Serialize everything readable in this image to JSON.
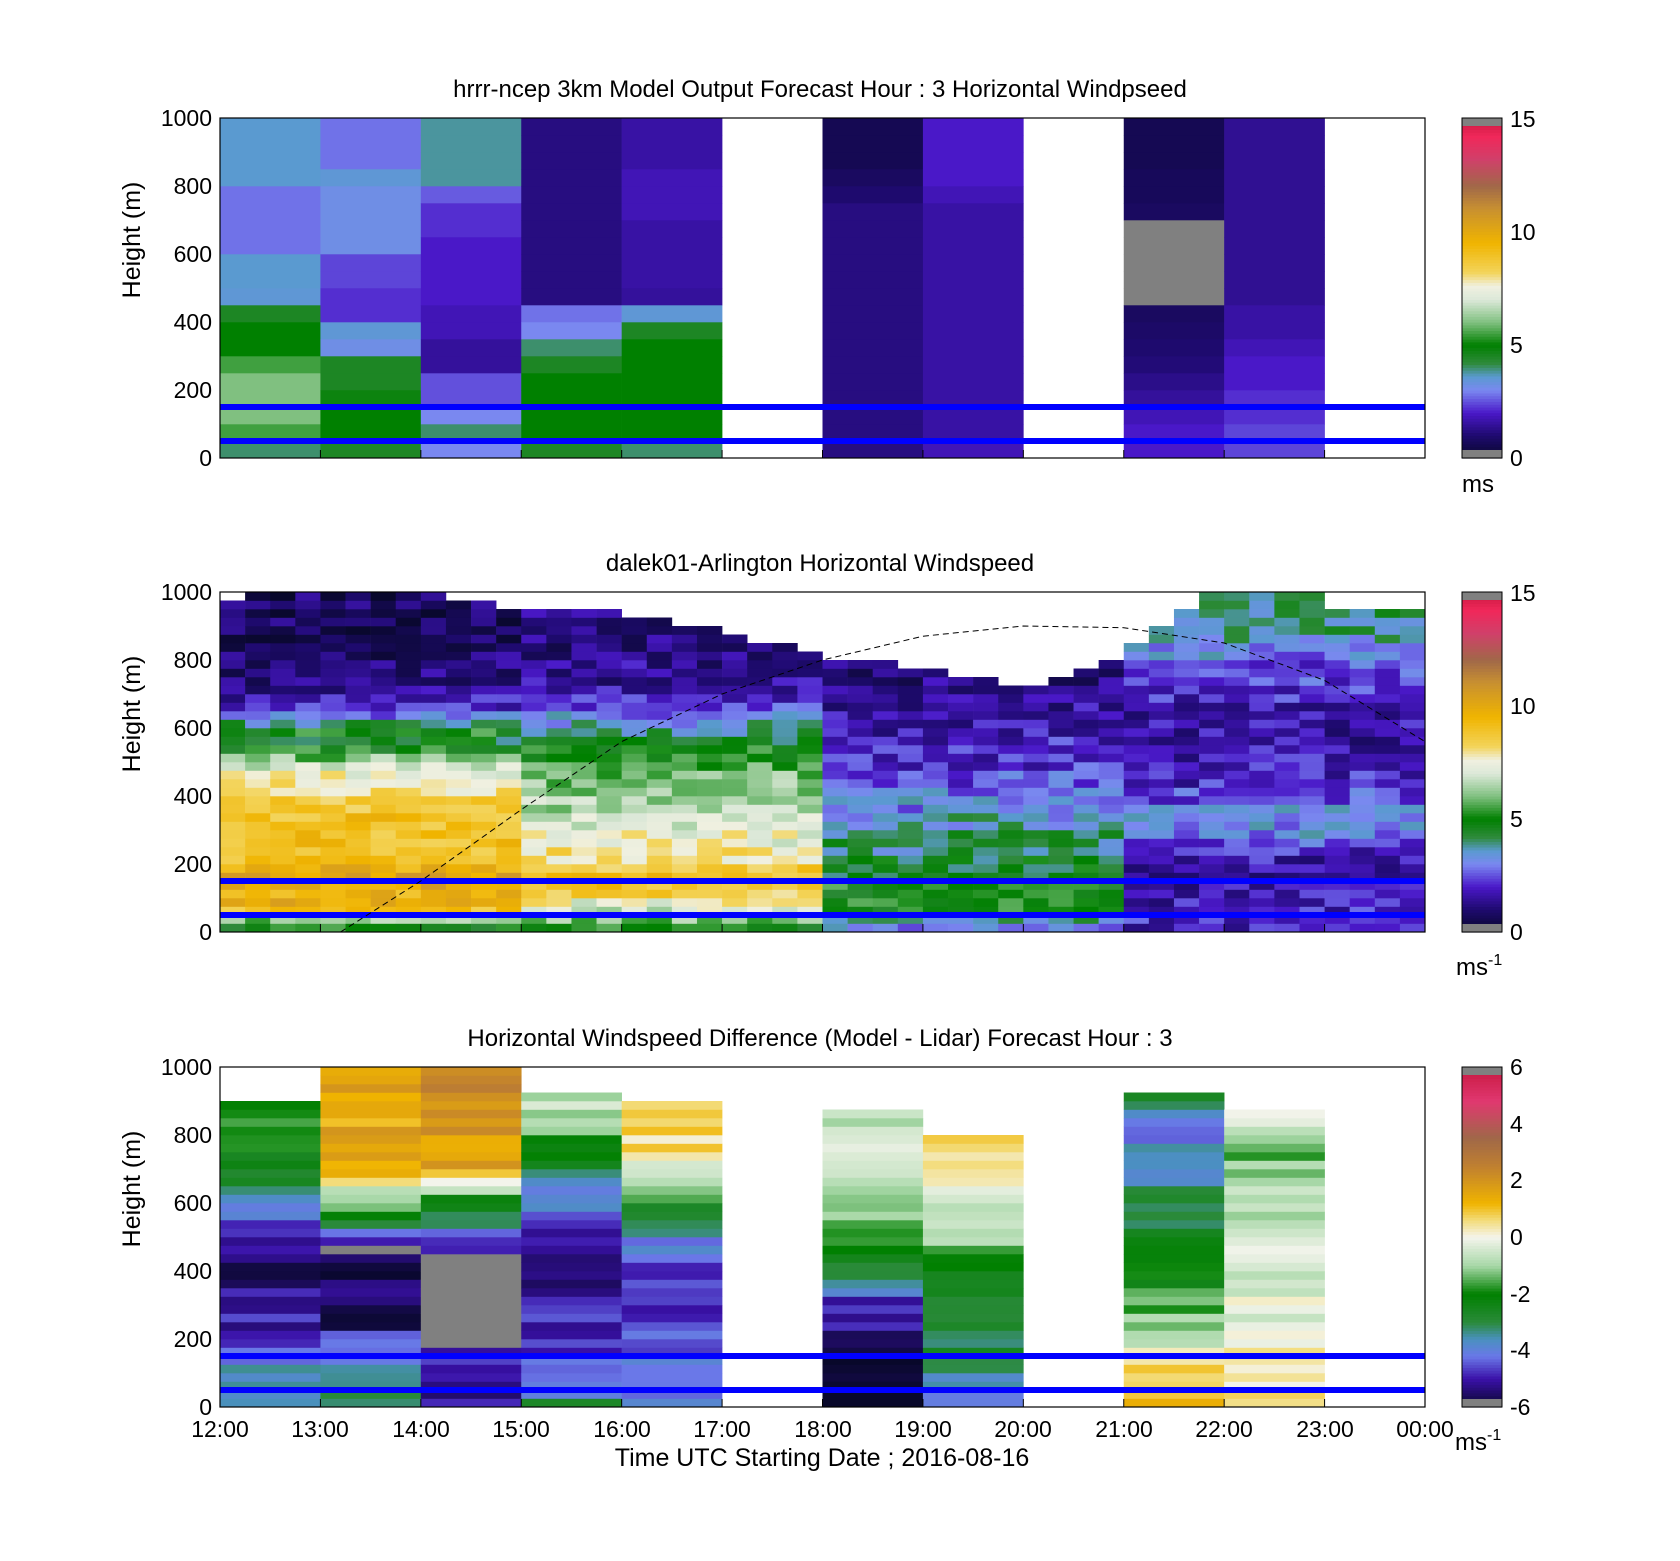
{
  "chart_data": [
    {
      "type": "heatmap",
      "title": "hrrr-ncep 3km Model Output   Forecast Hour : 3 Horizontal Windpseed",
      "ylabel": "Height (m)",
      "xlim": [
        12,
        24
      ],
      "ylim": [
        0,
        1000
      ],
      "yticks": [
        "0",
        "200",
        "400",
        "600",
        "800",
        "1000"
      ],
      "colorbar": {
        "min": 0,
        "max": 15,
        "ticks": [
          "0",
          "5",
          "10",
          "15"
        ],
        "unit": "ms",
        "unit_sup": ""
      },
      "reference_lines": [
        50,
        150
      ],
      "cell_height_m": 50,
      "columns": [
        {
          "start": 12,
          "end": 13,
          "values": [
            4,
            5.5,
            6,
            6,
            6,
            5.5,
            5,
            5,
            4.5,
            3.5,
            3.6,
            3.6,
            2.8,
            2.8,
            2.8,
            2.8,
            3.6,
            3.6,
            3.6,
            3.6
          ]
        },
        {
          "start": 13,
          "end": 14,
          "values": [
            4.5,
            5,
            5,
            4.8,
            4.5,
            4.5,
            3.2,
            3.5,
            2.2,
            2.2,
            2.4,
            2.4,
            3.2,
            3.2,
            3.2,
            3.2,
            3.5,
            2.8,
            2.8,
            2.8
          ]
        },
        {
          "start": 14,
          "end": 15,
          "values": [
            3,
            4,
            3,
            2.5,
            2.5,
            1.5,
            1.5,
            1.8,
            1.8,
            2,
            2,
            2,
            2,
            2.2,
            2.2,
            2.6,
            3.8,
            3.8,
            3.8,
            3.8
          ]
        },
        {
          "start": 15,
          "end": 16,
          "values": [
            4.5,
            5,
            5,
            5,
            5,
            4.5,
            4,
            3,
            2.8,
            1.2,
            1.2,
            1.2,
            1.2,
            1.2,
            1.2,
            1.2,
            1.2,
            1.2,
            1.2,
            1.2
          ]
        },
        {
          "start": 16,
          "end": 17,
          "values": [
            4,
            5,
            5,
            5,
            5,
            5,
            5,
            4.5,
            3.5,
            1.5,
            1.6,
            1.6,
            1.6,
            1.6,
            1.8,
            1.8,
            1.8,
            1.6,
            1.6,
            1.6
          ]
        },
        {
          "start": 18,
          "end": 19,
          "values": [
            1.2,
            1.2,
            1.2,
            1.2,
            1.2,
            1.2,
            1.2,
            1.2,
            1.2,
            1.2,
            1.2,
            1.2,
            1.2,
            1.2,
            1.2,
            1.0,
            0.8,
            0.6,
            0.6,
            0.6
          ]
        },
        {
          "start": 19,
          "end": 20,
          "values": [
            1.8,
            1.6,
            1.6,
            1.6,
            1.6,
            1.6,
            1.6,
            1.6,
            1.6,
            1.6,
            1.6,
            1.6,
            1.6,
            1.6,
            1.6,
            1.8,
            2,
            2,
            2,
            2
          ]
        },
        {
          "start": 21,
          "end": 22,
          "values": [
            2,
            2,
            1.8,
            1.5,
            1.3,
            1.1,
            1.0,
            0.9,
            0.8,
            null,
            null,
            null,
            null,
            null,
            0.8,
            0.7,
            0.7,
            0.6,
            0.6,
            0.6
          ]
        },
        {
          "start": 22,
          "end": 23,
          "values": [
            2.4,
            2.4,
            2.2,
            2.2,
            2,
            2,
            1.8,
            1.6,
            1.6,
            1.4,
            1.4,
            1.4,
            1.4,
            1.4,
            1.4,
            1.4,
            1.4,
            1.4,
            1.4,
            1.4
          ]
        }
      ]
    },
    {
      "type": "heatmap",
      "title": "dalek01-Arlington  Horizontal Windspeed",
      "ylabel": "Height (m)",
      "xlim": [
        12,
        24
      ],
      "ylim": [
        0,
        1000
      ],
      "yticks": [
        "0",
        "200",
        "400",
        "600",
        "800",
        "1000"
      ],
      "colorbar": {
        "min": 0,
        "max": 15,
        "ticks": [
          "0",
          "5",
          "10",
          "15"
        ],
        "unit": "ms",
        "unit_sup": "-1"
      },
      "reference_lines": [
        50,
        150
      ],
      "cell_height_m": 25,
      "bin_hours": 0.25,
      "column_tops_m": [
        975,
        1000,
        1000,
        1000,
        1000,
        1000,
        1000,
        1000,
        1000,
        975,
        975,
        950,
        950,
        950,
        950,
        950,
        925,
        925,
        900,
        900,
        875,
        850,
        850,
        825,
        800,
        800,
        800,
        775,
        775,
        750,
        750,
        725,
        725,
        750,
        775,
        800,
        850,
        900,
        950,
        1000,
        1000,
        1000,
        1000,
        1000,
        950,
        950,
        950,
        950
      ],
      "profiles": [
        {
          "name": "morning",
          "hour_end": 15.0,
          "values": [
            5,
            6,
            9,
            10,
            9.5,
            10,
            10,
            9.5,
            9,
            9,
            9,
            9,
            9,
            9,
            8.5,
            8.5,
            8,
            8,
            7.5,
            7,
            6,
            5,
            4.5,
            5,
            4,
            3,
            2.2,
            1.8,
            1.5,
            1.2,
            1.2,
            1.2,
            1.0,
            1.0,
            0.8,
            0.8,
            0.8,
            0.8,
            0.8,
            0.8
          ]
        },
        {
          "name": "midday",
          "hour_end": 18.0,
          "values": [
            5,
            6,
            7,
            7.5,
            8.5,
            9,
            9,
            8.5,
            8,
            8,
            7.5,
            7.5,
            7,
            7,
            6.5,
            6.5,
            6,
            6,
            6,
            5.5,
            5,
            5,
            4.5,
            4,
            3.5,
            3,
            2.5,
            2,
            1.8,
            1.5,
            1.5,
            1.4,
            1.3,
            1.2,
            1.2,
            1.2,
            1.2,
            1.2,
            1.2,
            1.2
          ]
        },
        {
          "name": "afternoon",
          "hour_end": 21.0,
          "values": [
            3,
            4,
            5,
            5,
            5,
            5,
            4.5,
            4.5,
            4.5,
            4,
            4,
            4,
            3.5,
            3.5,
            3,
            3,
            3,
            2.5,
            2.5,
            2.2,
            2,
            2,
            2,
            1.8,
            1.6,
            1.5,
            1.5,
            1.4,
            1.3,
            1.2,
            1.2,
            1.2,
            1.5,
            2,
            2.5,
            3,
            3.5,
            4,
            4,
            4
          ]
        },
        {
          "name": "evening",
          "hour_end": 24.0,
          "values": [
            2,
            2,
            2,
            1.8,
            1.8,
            1.6,
            1.6,
            1.6,
            1.8,
            2,
            2.5,
            3,
            3,
            3,
            3,
            2.5,
            2.5,
            2,
            2,
            2,
            1.8,
            1.8,
            1.6,
            1.6,
            1.6,
            1.6,
            1.8,
            2,
            2.2,
            2.4,
            2.5,
            2.5,
            3,
            3,
            3.5,
            4,
            4,
            4,
            4,
            4
          ]
        }
      ],
      "curve": {
        "style": "dashed",
        "x": [
          13.2,
          14,
          15,
          16,
          17,
          18,
          19,
          20,
          21,
          22,
          23,
          24
        ],
        "y": [
          0,
          150,
          360,
          560,
          700,
          800,
          870,
          900,
          895,
          850,
          740,
          560
        ]
      }
    },
    {
      "type": "heatmap",
      "title": "Horizontal Windspeed Difference (Model - Lidar) Forecast Hour : 3",
      "ylabel": "Height (m)",
      "xlabel": "Time UTC  Starting Date ; 2016-08-16",
      "xlim": [
        12,
        24
      ],
      "ylim": [
        0,
        1000
      ],
      "xticks": [
        "12:00",
        "13:00",
        "14:00",
        "15:00",
        "16:00",
        "17:00",
        "18:00",
        "19:00",
        "20:00",
        "21:00",
        "22:00",
        "23:00",
        "00:00"
      ],
      "yticks": [
        "0",
        "200",
        "400",
        "600",
        "800",
        "1000"
      ],
      "colorbar": {
        "min": -6,
        "max": 6,
        "ticks": [
          "-6",
          "-4",
          "-2",
          "0",
          "2",
          "4",
          "6"
        ],
        "unit": "ms",
        "unit_sup": "-1"
      },
      "reference_lines": [
        50,
        150
      ],
      "cell_height_m": 25,
      "columns": [
        {
          "start": 12,
          "end": 13,
          "top_m": 900,
          "profile": [
            [
              0,
              -3
            ],
            [
              150,
              -4
            ],
            [
              250,
              -5
            ],
            [
              450,
              -5.5
            ],
            [
              550,
              -4.5
            ],
            [
              650,
              -3
            ],
            [
              800,
              -2
            ],
            [
              900,
              -1.5
            ]
          ]
        },
        {
          "start": 13,
          "end": 14,
          "top_m": 1000,
          "profile": [
            [
              0,
              -3
            ],
            [
              200,
              -4
            ],
            [
              225,
              -5.5
            ],
            [
              450,
              null
            ],
            [
              475,
              -5
            ],
            [
              550,
              -2.5
            ],
            [
              650,
              0
            ],
            [
              700,
              1.5
            ],
            [
              1000,
              1.5
            ]
          ]
        },
        {
          "start": 14,
          "end": 15,
          "top_m": 1000,
          "profile": [
            [
              0,
              -5
            ],
            [
              150,
              -5
            ],
            [
              175,
              null
            ],
            [
              425,
              null
            ],
            [
              450,
              -5
            ],
            [
              600,
              -2.5
            ],
            [
              650,
              0
            ],
            [
              700,
              1.5
            ],
            [
              1000,
              2.5
            ]
          ]
        },
        {
          "start": 15,
          "end": 16,
          "top_m": 925,
          "profile": [
            [
              0,
              -3
            ],
            [
              100,
              -4.5
            ],
            [
              300,
              -5
            ],
            [
              450,
              -5.5
            ],
            [
              600,
              -4
            ],
            [
              700,
              -3
            ],
            [
              850,
              -1
            ],
            [
              925,
              -0.5
            ]
          ]
        },
        {
          "start": 16,
          "end": 17,
          "top_m": 900,
          "profile": [
            [
              0,
              -4
            ],
            [
              200,
              -4.5
            ],
            [
              400,
              -5
            ],
            [
              550,
              -3
            ],
            [
              650,
              -1
            ],
            [
              750,
              0.5
            ],
            [
              900,
              1
            ]
          ]
        },
        {
          "start": 18,
          "end": 19,
          "top_m": 875,
          "profile": [
            [
              0,
              -6
            ],
            [
              150,
              -5.5
            ],
            [
              300,
              -5
            ],
            [
              400,
              -3
            ],
            [
              500,
              -2
            ],
            [
              650,
              -0.5
            ],
            [
              750,
              0
            ],
            [
              875,
              -1
            ]
          ]
        },
        {
          "start": 19,
          "end": 20,
          "top_m": 800,
          "profile": [
            [
              0,
              -4
            ],
            [
              150,
              -3
            ],
            [
              200,
              -3
            ],
            [
              400,
              -2
            ],
            [
              500,
              -1
            ],
            [
              650,
              0
            ],
            [
              800,
              0.5
            ]
          ]
        },
        {
          "start": 21,
          "end": 22,
          "top_m": 925,
          "profile": [
            [
              0,
              1
            ],
            [
              100,
              1
            ],
            [
              200,
              -0.5
            ],
            [
              350,
              -2
            ],
            [
              550,
              -3
            ],
            [
              700,
              -3.5
            ],
            [
              800,
              -4
            ],
            [
              925,
              -3
            ]
          ]
        },
        {
          "start": 22,
          "end": 23,
          "top_m": 875,
          "profile": [
            [
              0,
              0.5
            ],
            [
              200,
              0
            ],
            [
              450,
              -0.5
            ],
            [
              650,
              -1
            ],
            [
              800,
              -1.5
            ],
            [
              875,
              0.5
            ]
          ]
        }
      ]
    }
  ]
}
